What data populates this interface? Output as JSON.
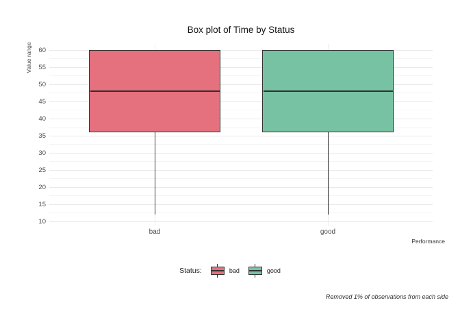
{
  "figure": {
    "title": "Box plot of Time by Status",
    "y_axis_title": "Value range",
    "x_axis_title": "Performance",
    "caption": "Removed 1% of observations from each side"
  },
  "colors": {
    "bad_fill": "#E5707E",
    "good_fill": "#78C2A4",
    "box_stroke": "#333333",
    "median_stroke": "#2f2f2f",
    "grid_major": "#E9E9E9",
    "grid_minor": "#F4F4F4",
    "grid_vertical": "#ECECEC",
    "tick_text": "#4d4d4d",
    "title_text": "#141414"
  },
  "chart_data": {
    "type": "boxplot",
    "title": "Box plot of Time by Status",
    "xlabel": "Performance",
    "ylabel": "Value range",
    "caption": "Removed 1% of observations from each side",
    "categories": [
      "bad",
      "good"
    ],
    "series": [
      {
        "name": "bad",
        "color": "#E5707E",
        "whisker_low": 12,
        "q1": 36,
        "median": 48,
        "q3": 60,
        "whisker_high": 60
      },
      {
        "name": "good",
        "color": "#78C2A4",
        "whisker_low": 12,
        "q1": 36,
        "median": 48,
        "q3": 60,
        "whisker_high": 60
      }
    ],
    "ylim": [
      8.5,
      61.8
    ],
    "yticks": [
      10,
      15,
      20,
      25,
      30,
      35,
      40,
      45,
      50,
      55,
      60
    ],
    "grid": true,
    "legend": {
      "title": "Status:",
      "position": "bottom",
      "entries": [
        {
          "label": "bad",
          "color": "#E5707E"
        },
        {
          "label": "good",
          "color": "#78C2A4"
        }
      ]
    }
  }
}
